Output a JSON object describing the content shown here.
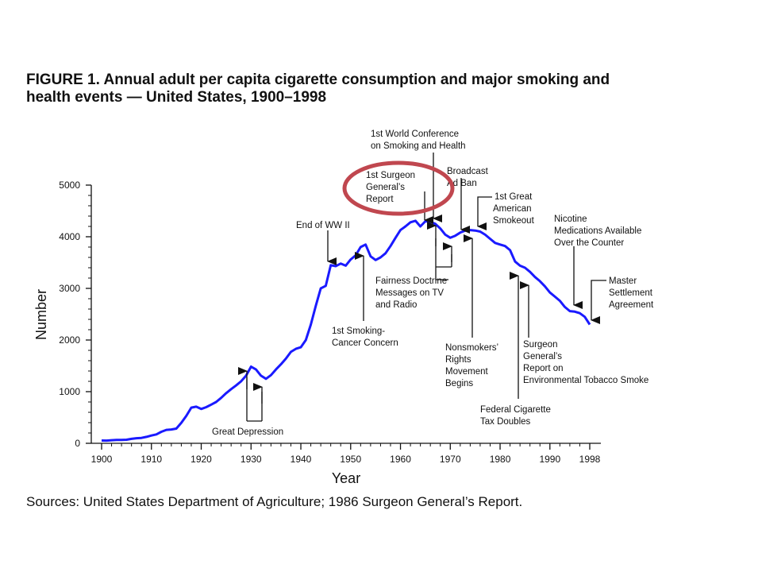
{
  "figure": {
    "title_line1": "FIGURE 1. Annual adult per capita cigarette consumption and major smoking and",
    "title_line2": "health events — United States, 1900–1998",
    "sources": "Sources: United States Department of Agriculture; 1986 Surgeon General’s Report."
  },
  "chart_data": {
    "type": "line",
    "xlabel": "Year",
    "ylabel": "Number",
    "xlim": [
      1900,
      1998
    ],
    "ylim": [
      0,
      5000
    ],
    "x_ticks": [
      "1900",
      "1910",
      "1920",
      "1930",
      "1940",
      "1950",
      "1960",
      "1970",
      "1980",
      "1990",
      "1998"
    ],
    "x_tick_values": [
      1900,
      1910,
      1920,
      1930,
      1940,
      1950,
      1960,
      1970,
      1980,
      1990,
      1998
    ],
    "y_ticks": [
      "0",
      "1000",
      "2000",
      "3000",
      "4000",
      "5000"
    ],
    "y_tick_values": [
      0,
      1000,
      2000,
      3000,
      4000,
      5000
    ],
    "line_color": "#1a1aff",
    "highlight_color": "#c0474f",
    "series": [
      {
        "x": [
          1900,
          1901,
          1902,
          1903,
          1904,
          1905,
          1906,
          1907,
          1908,
          1909,
          1910,
          1911,
          1912,
          1913,
          1914,
          1915,
          1916,
          1917,
          1918,
          1919,
          1920,
          1921,
          1922,
          1923,
          1924,
          1925,
          1926,
          1927,
          1928,
          1929,
          1930,
          1931,
          1932,
          1933,
          1934,
          1935,
          1936,
          1937,
          1938,
          1939,
          1940,
          1941,
          1942,
          1943,
          1944,
          1945,
          1946,
          1947,
          1948,
          1949,
          1950,
          1951,
          1952,
          1953,
          1954,
          1955,
          1956,
          1957,
          1958,
          1959,
          1960,
          1961,
          1962,
          1963,
          1964,
          1965,
          1966,
          1967,
          1968,
          1969,
          1970,
          1971,
          1972,
          1973,
          1974,
          1975,
          1976,
          1977,
          1978,
          1979,
          1980,
          1981,
          1982,
          1983,
          1984,
          1985,
          1986,
          1987,
          1988,
          1989,
          1990,
          1991,
          1992,
          1993,
          1994,
          1995,
          1996,
          1997,
          1998
        ],
        "values": [
          54,
          53,
          60,
          64,
          66,
          70,
          86,
          99,
          105,
          125,
          151,
          173,
          223,
          260,
          267,
          285,
          395,
          530,
          690,
          710,
          665,
          700,
          750,
          800,
          880,
          970,
          1050,
          1120,
          1200,
          1310,
          1485,
          1430,
          1310,
          1250,
          1320,
          1430,
          1530,
          1640,
          1770,
          1830,
          1860,
          2000,
          2300,
          2660,
          3000,
          3050,
          3450,
          3430,
          3480,
          3440,
          3560,
          3640,
          3800,
          3850,
          3620,
          3550,
          3600,
          3680,
          3820,
          3980,
          4130,
          4200,
          4280,
          4310,
          4200,
          4300,
          4290,
          4250,
          4160,
          4040,
          3980,
          4020,
          4080,
          4120,
          4130,
          4120,
          4100,
          4040,
          3960,
          3880,
          3850,
          3820,
          3740,
          3520,
          3440,
          3400,
          3320,
          3220,
          3140,
          3040,
          2920,
          2840,
          2760,
          2640,
          2560,
          2550,
          2520,
          2450,
          2300
        ]
      }
    ],
    "annotations": [
      {
        "label": "Great Depression",
        "years": [
          1929,
          1932
        ]
      },
      {
        "label": "End of WW II",
        "years": [
          1945
        ]
      },
      {
        "label": "1st Smoking-Cancer Concern",
        "years": [
          1952
        ]
      },
      {
        "label": "Fairness Doctrine Messages on TV and Radio",
        "years": [
          1968,
          1970
        ]
      },
      {
        "label": "1st World Conference on Smoking and Health",
        "years": [
          1967
        ]
      },
      {
        "label": "1st Surgeon General’s Report",
        "years": [
          1964
        ]
      },
      {
        "label": "Broadcast Ad Ban",
        "years": [
          1971
        ]
      },
      {
        "label": "1st Great American Smokeout",
        "years": [
          1976
        ]
      },
      {
        "label": "Nonsmokers’ Rights Movement Begins",
        "years": [
          1973
        ]
      },
      {
        "label": "Federal Cigarette Tax Doubles",
        "years": [
          1983
        ]
      },
      {
        "label": "Surgeon General’s Report on Environmental Tobacco Smoke",
        "years": [
          1986
        ]
      },
      {
        "label": "Nicotine Medications Available Over the Counter",
        "years": [
          1996
        ]
      },
      {
        "label": "Master Settlement Agreement",
        "years": [
          1998
        ]
      }
    ],
    "annotation_text": {
      "great_depression": "Great Depression",
      "end_ww2": "End of WW II",
      "smoking_cancer_1": "1st Smoking-",
      "smoking_cancer_2": "Cancer Concern",
      "fairness_1": "Fairness Doctrine",
      "fairness_2": "Messages on TV",
      "fairness_3": "and Radio",
      "world_conf_1": "1st World Conference",
      "world_conf_2": "on Smoking and Health",
      "surgeon_1": "1st Surgeon",
      "surgeon_2": "General’s",
      "surgeon_3": "Report",
      "broadcast_1": "Broadcast",
      "broadcast_2": "Ad Ban",
      "smokeout_1": "1st Great",
      "smokeout_2": "American",
      "smokeout_3": "Smokeout",
      "nonsmokers_1": "Nonsmokers’",
      "nonsmokers_2": "Rights",
      "nonsmokers_3": "Movement",
      "nonsmokers_4": "Begins",
      "tax_1": "Federal Cigarette",
      "tax_2": "Tax Doubles",
      "ets_1": "Surgeon",
      "ets_2": "General’s",
      "ets_3": "Report on",
      "ets_4": "Environmental Tobacco Smoke",
      "nicotine_1": "Nicotine",
      "nicotine_2": "Medications Available",
      "nicotine_3": "Over the Counter",
      "msa_1": "Master",
      "msa_2": "Settlement",
      "msa_3": "Agreement"
    }
  }
}
